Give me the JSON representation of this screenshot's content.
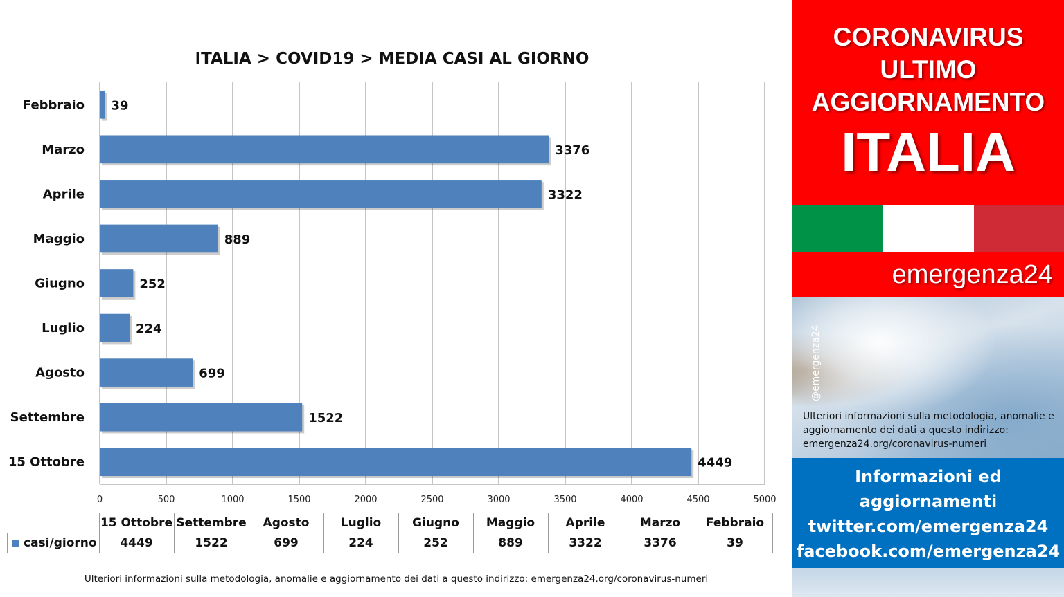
{
  "chart_data": {
    "type": "bar",
    "orientation": "horizontal",
    "title": "ITALIA >  COVID19 > MEDIA CASI AL GIORNO",
    "categories": [
      "Febbraio",
      "Marzo",
      "Aprile",
      "Maggio",
      "Giugno",
      "Luglio",
      "Agosto",
      "Settembre",
      "15 Ottobre"
    ],
    "series": [
      {
        "name": "casi/giorno",
        "values": [
          39,
          3376,
          3322,
          889,
          252,
          224,
          699,
          1522,
          4449
        ]
      }
    ],
    "xlim": [
      0,
      5000
    ],
    "xticks": [
      0,
      500,
      1000,
      1500,
      2000,
      2500,
      3000,
      3500,
      4000,
      4500,
      5000
    ],
    "bar_color": "#4f81bd",
    "grid": true,
    "data_table": {
      "categories": [
        "15 Ottobre",
        "Settembre",
        "Agosto",
        "Luglio",
        "Giugno",
        "Maggio",
        "Aprile",
        "Marzo",
        "Febbraio"
      ],
      "series_name": "casi/giorno",
      "values": [
        4449,
        1522,
        699,
        224,
        252,
        889,
        3322,
        3376,
        39
      ]
    }
  },
  "footnote": "Ulteriori informazioni sulla metodologia, anomalie e aggiornamento dei dati a questo indirizzo: emergenza24.org/coronavirus-numeri",
  "sidebar": {
    "headline_lines": [
      "CORONAVIRUS",
      "ULTIMO",
      "AGGIORNAMENTO"
    ],
    "country": "ITALIA",
    "flag_colors": [
      "#009246",
      "#ffffff",
      "#ce2b37"
    ],
    "brand": "emergenza24",
    "handle": "@emergenza24",
    "info_note": "Ulteriori informazioni sulla metodologia, anomalie e aggiornamento dei dati a questo indirizzo: emergenza24.org/coronavirus-numeri",
    "social_lines": [
      "Informazioni ed",
      "aggiornamenti",
      "twitter.com/emergenza24",
      "facebook.com/emergenza24"
    ],
    "colors": {
      "red": "#ff0000",
      "blue": "#0070c0"
    }
  }
}
